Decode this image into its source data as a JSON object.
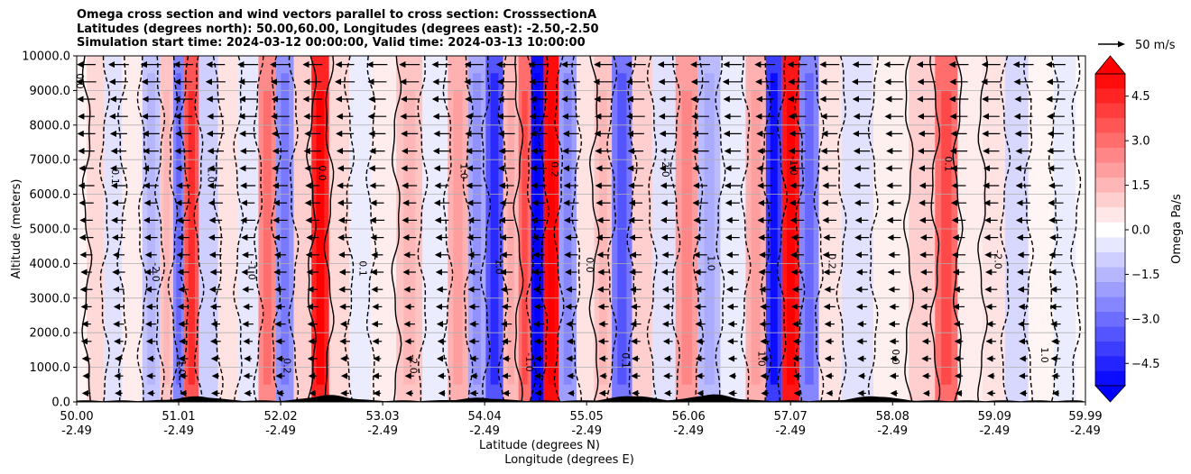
{
  "chart_data": {
    "type": "heatmap",
    "title_lines": [
      "Omega cross section and wind vectors parallel to cross section: CrosssectionA",
      "Latitudes (degrees north): 50.00,60.00, Longitudes (degrees east): -2.50,-2.50",
      "Simulation start time: 2024-03-12 00:00:00, Valid time: 2024-03-13 10:00:00"
    ],
    "ylabel": "Altitude (meters)",
    "xlabel_lines": [
      "Latitude (degrees N)",
      "Longitude (degrees E)"
    ],
    "x_range": [
      50.0,
      59.99
    ],
    "ylim": [
      0,
      10000
    ],
    "x_ticks": [
      {
        "lat": "50.00",
        "lon": "-2.49",
        "value": 50.0
      },
      {
        "lat": "51.01",
        "lon": "-2.49",
        "value": 51.01
      },
      {
        "lat": "52.02",
        "lon": "-2.49",
        "value": 52.02
      },
      {
        "lat": "53.03",
        "lon": "-2.49",
        "value": 53.03
      },
      {
        "lat": "54.04",
        "lon": "-2.49",
        "value": 54.04
      },
      {
        "lat": "55.05",
        "lon": "-2.49",
        "value": 55.05
      },
      {
        "lat": "56.06",
        "lon": "-2.49",
        "value": 56.06
      },
      {
        "lat": "57.07",
        "lon": "-2.49",
        "value": 57.07
      },
      {
        "lat": "58.08",
        "lon": "-2.49",
        "value": 58.08
      },
      {
        "lat": "59.09",
        "lon": "-2.49",
        "value": 59.09
      },
      {
        "lat": "59.99",
        "lon": "-2.49",
        "value": 59.99
      }
    ],
    "y_ticks": [
      {
        "label": "0.0",
        "value": 0
      },
      {
        "label": "1000.0",
        "value": 1000
      },
      {
        "label": "2000.0",
        "value": 2000
      },
      {
        "label": "3000.0",
        "value": 3000
      },
      {
        "label": "4000.0",
        "value": 4000
      },
      {
        "label": "5000.0",
        "value": 5000
      },
      {
        "label": "6000.0",
        "value": 6000
      },
      {
        "label": "7000.0",
        "value": 7000
      },
      {
        "label": "8000.0",
        "value": 8000
      },
      {
        "label": "9000.0",
        "value": 9000
      },
      {
        "label": "10000.0",
        "value": 10000
      }
    ],
    "grid": true,
    "colorbar": {
      "label": "Omega Pa/s",
      "range": [
        -5.25,
        5.25
      ],
      "extend": "both",
      "ticks": [
        {
          "label": "4.5",
          "value": 4.5
        },
        {
          "label": "3.0",
          "value": 3.0
        },
        {
          "label": "1.5",
          "value": 1.5
        },
        {
          "label": "0.0",
          "value": 0.0
        },
        {
          "label": "−1.5",
          "value": -1.5
        },
        {
          "label": "−3.0",
          "value": -3.0
        },
        {
          "label": "−4.5",
          "value": -4.5
        }
      ],
      "colormap": "bwr"
    },
    "omega_bands": [
      {
        "lat": 50.0,
        "omega": 0.2
      },
      {
        "lat": 50.2,
        "omega": 0.8
      },
      {
        "lat": 50.35,
        "omega": -0.6
      },
      {
        "lat": 50.55,
        "omega": 0.4
      },
      {
        "lat": 50.75,
        "omega": -1.2
      },
      {
        "lat": 50.9,
        "omega": 1.2
      },
      {
        "lat": 51.01,
        "omega": -2.5
      },
      {
        "lat": 51.12,
        "omega": 3.5
      },
      {
        "lat": 51.3,
        "omega": -1.0
      },
      {
        "lat": 51.5,
        "omega": 0.6
      },
      {
        "lat": 51.7,
        "omega": -0.5
      },
      {
        "lat": 51.9,
        "omega": 2.4
      },
      {
        "lat": 52.05,
        "omega": -2.2
      },
      {
        "lat": 52.25,
        "omega": 1.0
      },
      {
        "lat": 52.4,
        "omega": 4.5
      },
      {
        "lat": 52.6,
        "omega": 0.8
      },
      {
        "lat": 52.8,
        "omega": -0.4
      },
      {
        "lat": 53.03,
        "omega": 0.4
      },
      {
        "lat": 53.3,
        "omega": 1.2
      },
      {
        "lat": 53.55,
        "omega": -0.4
      },
      {
        "lat": 53.8,
        "omega": 1.6
      },
      {
        "lat": 53.95,
        "omega": -1.8
      },
      {
        "lat": 54.15,
        "omega": -3.5
      },
      {
        "lat": 54.3,
        "omega": 1.4
      },
      {
        "lat": 54.45,
        "omega": 3.0
      },
      {
        "lat": 54.55,
        "omega": -5.0
      },
      {
        "lat": 54.7,
        "omega": 5.0
      },
      {
        "lat": 54.85,
        "omega": -2.0
      },
      {
        "lat": 55.05,
        "omega": 0.6
      },
      {
        "lat": 55.2,
        "omega": 1.2
      },
      {
        "lat": 55.4,
        "omega": -2.8
      },
      {
        "lat": 55.6,
        "omega": 1.0
      },
      {
        "lat": 55.8,
        "omega": -0.6
      },
      {
        "lat": 56.06,
        "omega": 2.0
      },
      {
        "lat": 56.25,
        "omega": -1.4
      },
      {
        "lat": 56.5,
        "omega": -0.4
      },
      {
        "lat": 56.75,
        "omega": 1.6
      },
      {
        "lat": 56.9,
        "omega": -4.0
      },
      {
        "lat": 57.07,
        "omega": 4.8
      },
      {
        "lat": 57.25,
        "omega": -2.5
      },
      {
        "lat": 57.45,
        "omega": 0.6
      },
      {
        "lat": 57.7,
        "omega": -0.6
      },
      {
        "lat": 58.08,
        "omega": 0.3
      },
      {
        "lat": 58.4,
        "omega": 1.0
      },
      {
        "lat": 58.6,
        "omega": 3.0
      },
      {
        "lat": 58.85,
        "omega": 0.4
      },
      {
        "lat": 59.09,
        "omega": 0.6
      },
      {
        "lat": 59.3,
        "omega": -0.8
      },
      {
        "lat": 59.55,
        "omega": 0.2
      },
      {
        "lat": 59.8,
        "omega": -0.4
      },
      {
        "lat": 59.99,
        "omega": 0.1
      }
    ],
    "contour_labels": [
      "0.0",
      "1.0",
      "0.1",
      "-1.0",
      "-2.0",
      "0.2",
      "1.0"
    ],
    "wind_vector_reference": "50 m/s",
    "wind_direction": "westward (pointing toward decreasing latitude)",
    "terrain": "black filled ground along bottom with peaks near 51.2, 52.5, 55.5, 56.3, 57.9"
  }
}
